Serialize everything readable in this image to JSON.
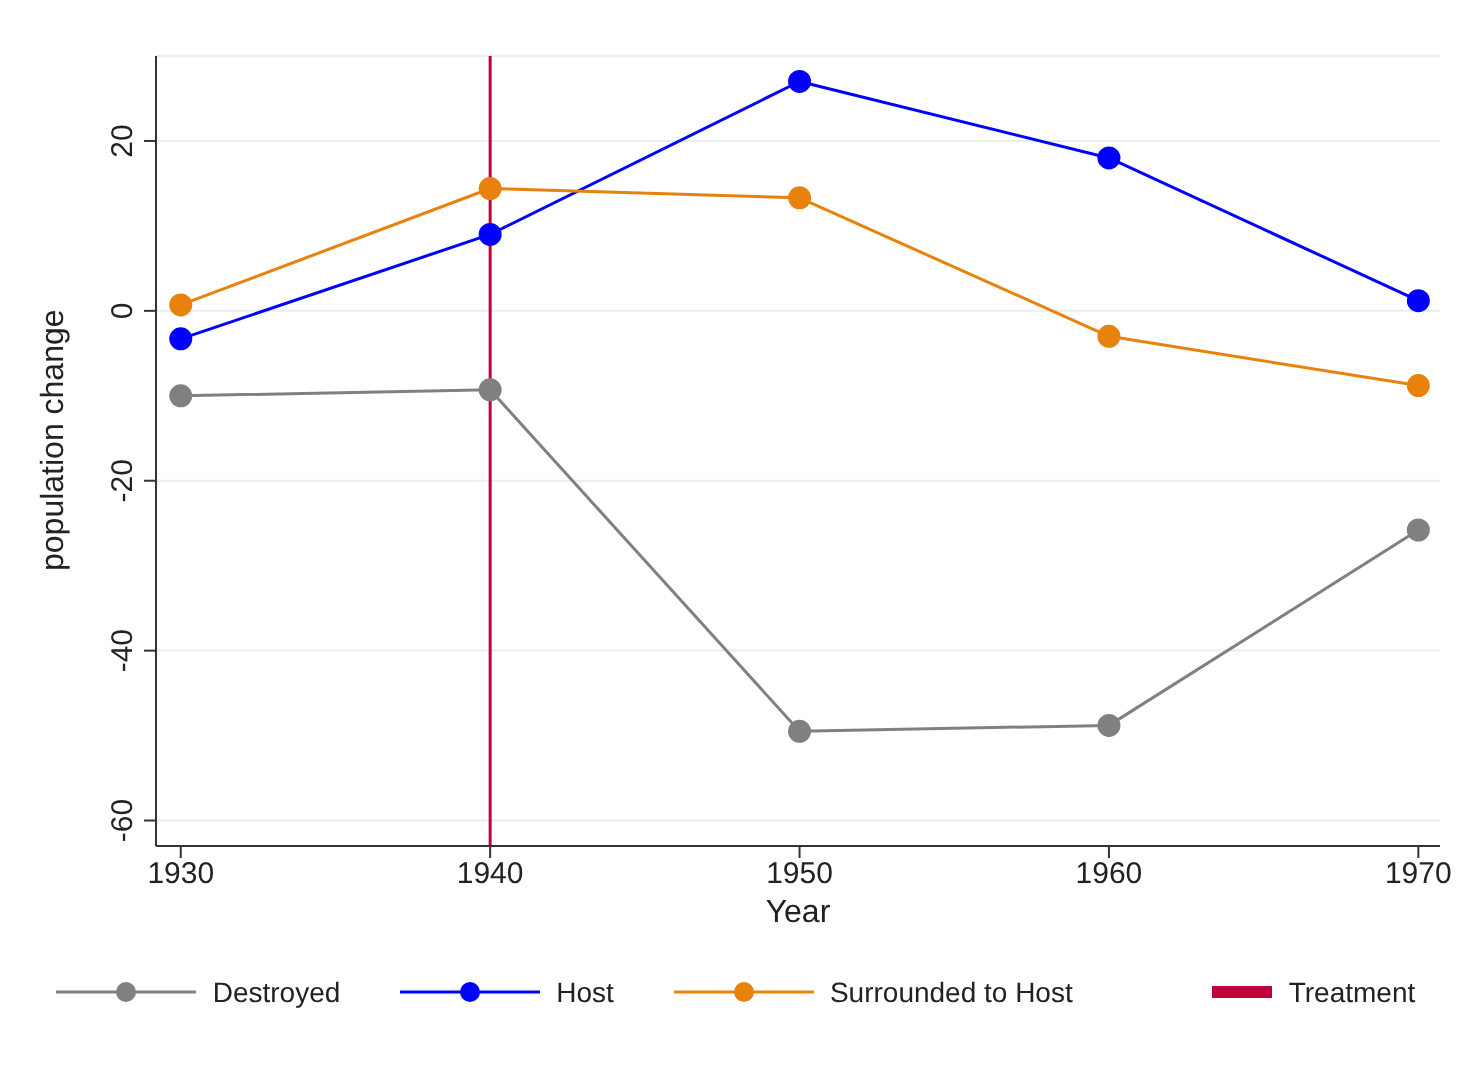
{
  "chart_data": {
    "type": "line",
    "xlabel": "Year",
    "ylabel": "population change",
    "x": [
      1930,
      1940,
      1950,
      1960,
      1970
    ],
    "series": [
      {
        "name": "Destroyed",
        "color": "#808080",
        "values": [
          -10,
          -9.3,
          -49.5,
          -48.8,
          -25.8
        ]
      },
      {
        "name": "Host",
        "color": "#0000ff",
        "values": [
          -3.3,
          9,
          27,
          18,
          1.2
        ]
      },
      {
        "name": "Surrounded to Host",
        "color": "#e8820c",
        "values": [
          0.7,
          14.4,
          13.3,
          -3,
          -8.8
        ]
      }
    ],
    "xlim": [
      1929.2,
      1970.7
    ],
    "xticks": [
      1930,
      1940,
      1950,
      1960,
      1970
    ],
    "ylim": [
      -63,
      30
    ],
    "yticks": [
      -60,
      -40,
      -20,
      0,
      20
    ],
    "ref_lines": [
      {
        "axis": "x",
        "value": 1940,
        "label": "Treatment",
        "color": "#c0003c"
      }
    ],
    "grid": "y",
    "legend": "bottom",
    "marker": "circle",
    "line_style": "solid"
  }
}
